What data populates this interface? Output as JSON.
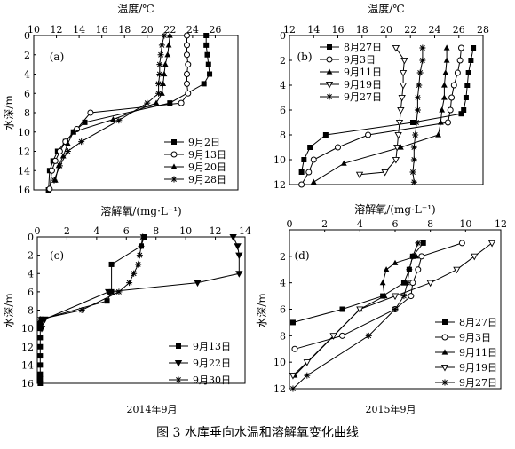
{
  "caption": "图 3  水库垂向水温和溶解氧变化曲线",
  "year_labels": [
    "2014年9月",
    "2015年9月"
  ],
  "chart_data": [
    {
      "type": "line",
      "panel": "(a)",
      "xlabel": "温度/℃",
      "ylabel": "水深/m",
      "xlim": [
        10,
        28
      ],
      "ylim": [
        0,
        16
      ],
      "x_ticks": [
        10,
        12,
        14,
        16,
        18,
        20,
        22,
        24,
        26
      ],
      "y_ticks": [
        0,
        2,
        4,
        6,
        8,
        10,
        12,
        14,
        16
      ],
      "legend_position": "bottom-right",
      "grid": false,
      "series": [
        {
          "name": "9月2日",
          "marker": "square",
          "x": [
            25.2,
            25.2,
            25.3,
            25.4,
            25.5,
            25.0,
            22.0,
            14.5,
            13.5,
            12.8,
            12.1,
            11.7,
            11.4,
            11.3
          ],
          "y": [
            0,
            1,
            2,
            3,
            4,
            5,
            7,
            9,
            10,
            11,
            12,
            13,
            14,
            16
          ]
        },
        {
          "name": "9月13日",
          "marker": "circle",
          "x": [
            23.5,
            23.5,
            23.5,
            23.6,
            23.5,
            23.5,
            23.6,
            23.0,
            15.0,
            13.8,
            12.8,
            12.3,
            11.9,
            11.6,
            11.4
          ],
          "y": [
            0,
            1,
            2,
            3,
            4,
            5,
            6,
            7,
            8,
            9.7,
            11,
            12,
            13,
            14,
            15.9
          ]
        },
        {
          "name": "9月20日",
          "marker": "triangle",
          "x": [
            22.0,
            21.9,
            21.8,
            21.6,
            21.5,
            21.4,
            21.3,
            20.8,
            17.0,
            13.5,
            13.0,
            12.6,
            12.2,
            11.9
          ],
          "y": [
            0,
            1,
            2,
            3,
            4,
            5,
            6,
            7,
            8.7,
            10,
            11.2,
            12.5,
            13.5,
            15
          ]
        },
        {
          "name": "9月28日",
          "marker": "star",
          "x": [
            21.5,
            21.3,
            21.2,
            21.1,
            21.1,
            21.0,
            21.0,
            20.0,
            17.5,
            14.2,
            13.0,
            12.3,
            11.8
          ],
          "y": [
            0,
            1,
            2,
            3,
            4,
            5,
            6,
            7,
            8.8,
            11,
            12,
            13.5,
            15
          ]
        }
      ]
    },
    {
      "type": "line",
      "panel": "(b)",
      "xlabel": "温度/℃",
      "ylabel": "",
      "xlim": [
        12,
        28
      ],
      "ylim": [
        0,
        12
      ],
      "x_ticks": [
        12,
        14,
        16,
        18,
        20,
        22,
        24,
        26,
        28
      ],
      "y_ticks": [
        0,
        2,
        4,
        6,
        8,
        10,
        12
      ],
      "legend_position": "top-left",
      "grid": false,
      "series": [
        {
          "name": "8月27日",
          "marker": "square",
          "x": [
            27.2,
            27.0,
            26.8,
            26.7,
            26.6,
            26.4,
            26.2,
            22.2,
            15.0,
            13.7,
            13.2,
            13.0
          ],
          "y": [
            1,
            2,
            3,
            4,
            5,
            6,
            6.3,
            7,
            8,
            9,
            10,
            11
          ]
        },
        {
          "name": "9月3日",
          "marker": "circle",
          "x": [
            26.2,
            26.1,
            25.9,
            25.6,
            25.4,
            25.3,
            25.1,
            18.5,
            16.0,
            14.0,
            13.6,
            13.0
          ],
          "y": [
            1,
            2,
            3,
            4,
            5,
            6,
            7,
            8,
            9,
            10,
            11,
            12
          ]
        },
        {
          "name": "9月11日",
          "marker": "triangle",
          "x": [
            25.0,
            25.0,
            24.9,
            24.8,
            24.8,
            24.6,
            24.5,
            24.3,
            21.2,
            16.5,
            14.0
          ],
          "y": [
            1,
            2,
            3,
            4,
            5,
            6,
            7,
            8,
            9,
            10.3,
            11.8
          ]
        },
        {
          "name": "9月19日",
          "marker": "triangle-down",
          "x": [
            20.8,
            21.5,
            21.4,
            21.4,
            21.3,
            21.2,
            21.1,
            21.0,
            20.9,
            20.8,
            19.9,
            17.8
          ],
          "y": [
            1,
            2,
            3,
            4,
            5,
            6,
            7,
            8,
            9,
            10,
            11,
            11.2
          ]
        },
        {
          "name": "9月27日",
          "marker": "star",
          "x": [
            23.0,
            23.0,
            22.8,
            22.7,
            22.6,
            22.6,
            22.5,
            22.4,
            22.3,
            22.3,
            22.2,
            22.3
          ],
          "y": [
            1,
            2,
            3,
            4,
            5,
            6,
            7,
            8,
            9,
            10,
            11,
            11.8
          ]
        }
      ]
    },
    {
      "type": "line",
      "panel": "(c)",
      "xlabel": "溶解氧/(mg·L⁻¹)",
      "ylabel": "水深/m",
      "xlim": [
        0,
        14
      ],
      "ylim": [
        0,
        16
      ],
      "x_ticks": [
        0,
        2,
        4,
        6,
        8,
        10,
        12,
        14
      ],
      "y_ticks": [
        0,
        2,
        4,
        6,
        8,
        10,
        12,
        14,
        16
      ],
      "legend_position": "bottom-right",
      "grid": false,
      "series": [
        {
          "name": "9月13日",
          "marker": "square",
          "x": [
            7.2,
            7.0,
            5.0,
            5.0,
            4.7,
            0.3,
            0.2,
            0.2,
            0.2,
            0.2,
            0.2,
            0.2,
            0.2,
            0.2,
            0.2
          ],
          "y": [
            0,
            1,
            3,
            6,
            7,
            9,
            9.5,
            10,
            11,
            12,
            13,
            14,
            15,
            15.5,
            16
          ]
        },
        {
          "name": "9月22日",
          "marker": "triangle-down",
          "x": [
            13.2,
            13.5,
            13.6,
            13.6,
            10.8,
            4.8,
            0.5,
            0.3
          ],
          "y": [
            0,
            1,
            2,
            4,
            5,
            6,
            9,
            10
          ]
        },
        {
          "name": "9月30日",
          "marker": "star",
          "x": [
            7.1,
            7.0,
            6.9,
            6.8,
            6.5,
            6.2,
            5.5,
            3.0,
            0.2
          ],
          "y": [
            0,
            1,
            2,
            3,
            4,
            5,
            6,
            8,
            9
          ]
        }
      ]
    },
    {
      "type": "line",
      "panel": "(d)",
      "xlabel": "溶解氧/(mg·L⁻¹)",
      "ylabel": "水深/m",
      "xlim": [
        0,
        12
      ],
      "ylim": [
        0,
        12
      ],
      "x_ticks": [
        0,
        2,
        4,
        6,
        8,
        10,
        12
      ],
      "y_ticks": [
        2,
        4,
        6,
        8,
        10,
        12
      ],
      "legend_position": "bottom-right",
      "grid": false,
      "series": [
        {
          "name": "8月27日",
          "marker": "square",
          "x": [
            7.6,
            7.0,
            6.8,
            6.5,
            5.3,
            3.0,
            0.2
          ],
          "y": [
            1,
            2,
            3,
            4,
            5,
            6,
            7
          ]
        },
        {
          "name": "9月3日",
          "marker": "circle",
          "x": [
            9.8,
            7.5,
            7.3,
            7.0,
            6.9,
            6.0,
            3.0,
            0.3
          ],
          "y": [
            1,
            2,
            3,
            4,
            5,
            6,
            8,
            9
          ]
        },
        {
          "name": "9月11日",
          "marker": "triangle",
          "x": [
            7.2,
            6.0,
            5.5,
            5.3,
            5.4,
            4.0,
            0.3
          ],
          "y": [
            2,
            2.5,
            3,
            4,
            5,
            6,
            11
          ]
        },
        {
          "name": "9月19日",
          "marker": "triangle-down",
          "x": [
            11.5,
            10.5,
            9.5,
            8.0,
            6.0,
            4.0,
            2.5,
            1.0,
            0.2
          ],
          "y": [
            1,
            2,
            3,
            4,
            5,
            6,
            8,
            10,
            11
          ]
        },
        {
          "name": "9月27日",
          "marker": "star",
          "x": [
            7.3,
            7.0,
            6.8,
            6.7,
            6.5,
            6.0,
            4.5,
            1.0,
            0.2
          ],
          "y": [
            1,
            2,
            3,
            4,
            5,
            6,
            8,
            11,
            12
          ]
        }
      ]
    }
  ]
}
